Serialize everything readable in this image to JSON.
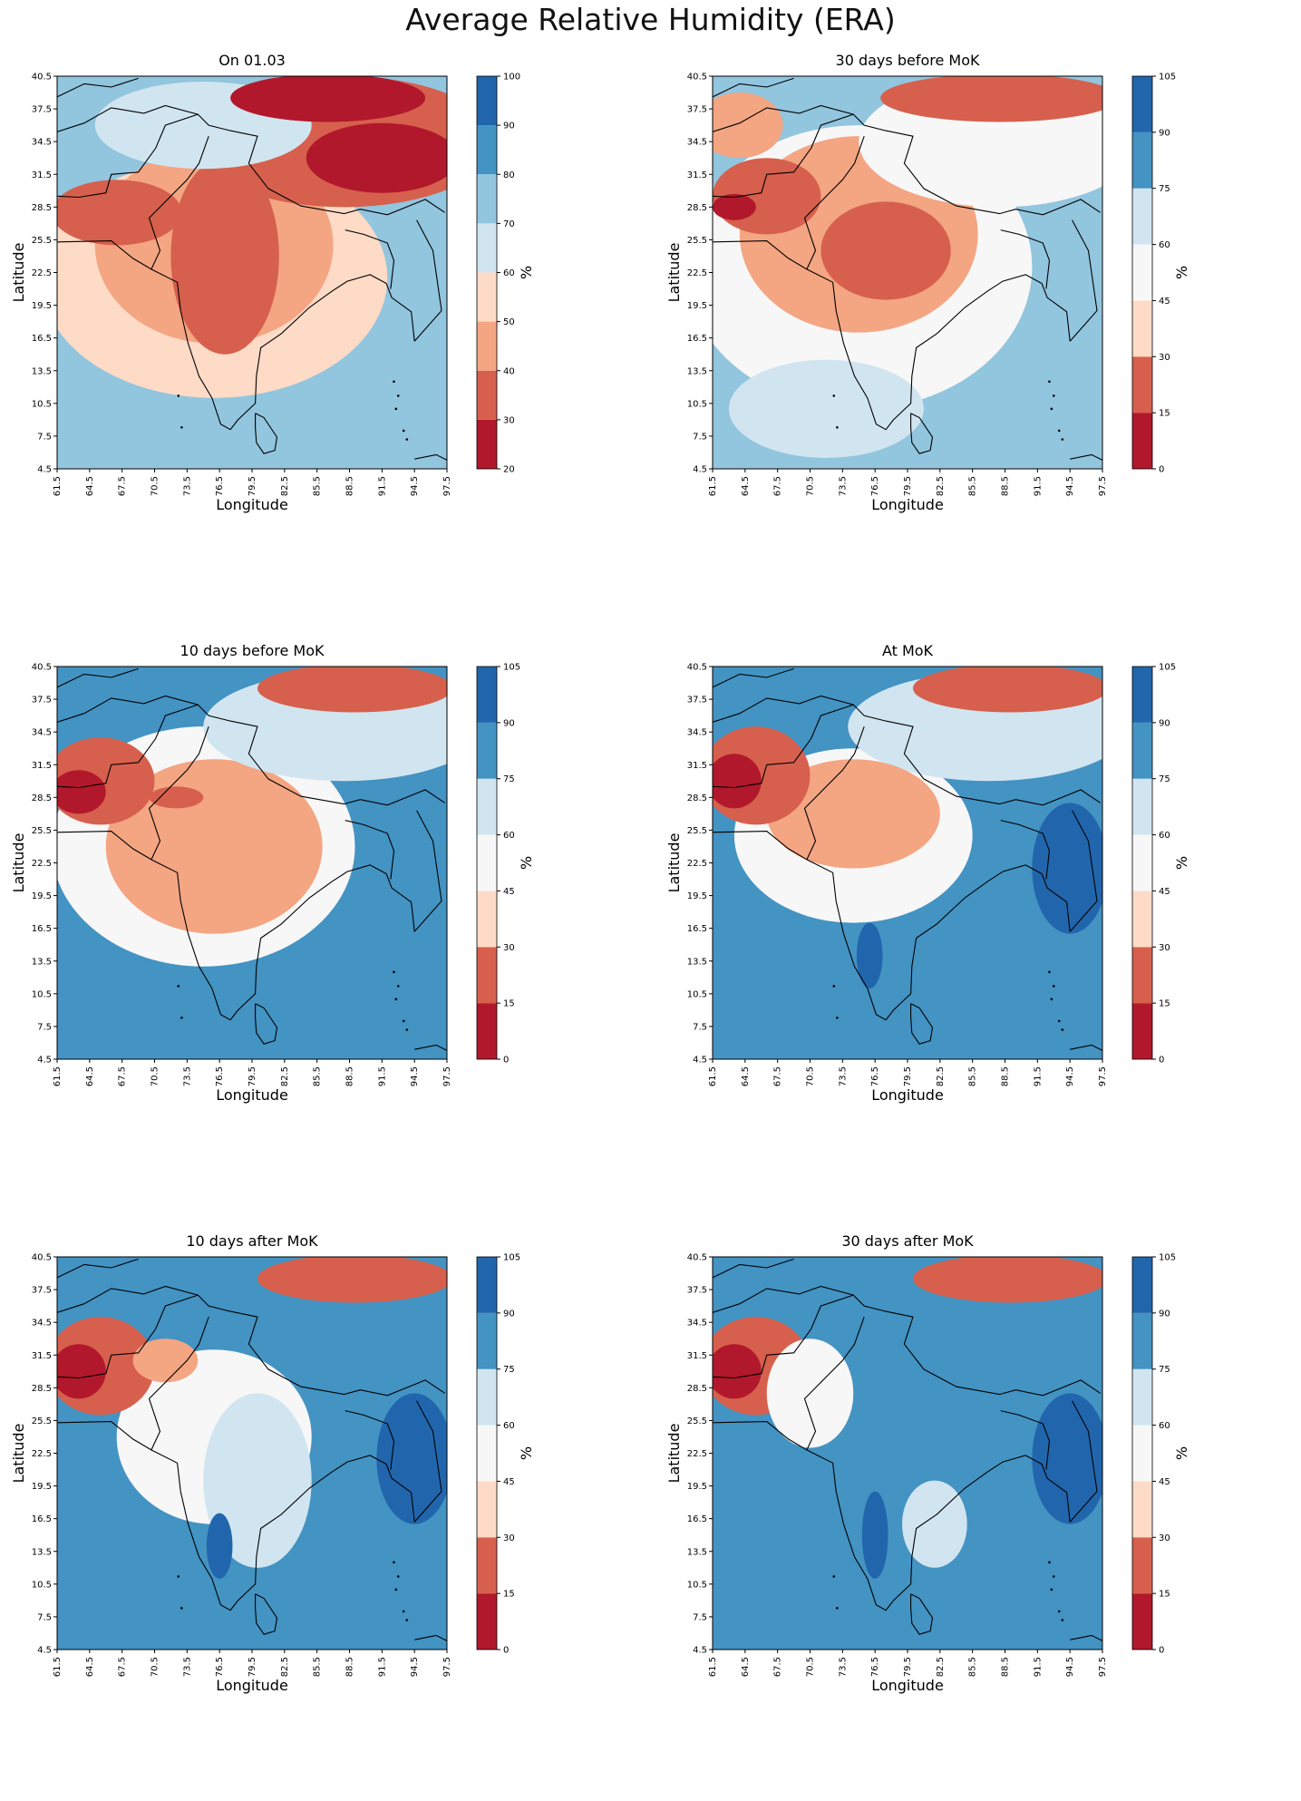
{
  "figure": {
    "title": "Average Relative Humidity (ERA)"
  },
  "colors": {
    "scale": [
      "#b2182b",
      "#d6604d",
      "#f4a582",
      "#fddbc7",
      "#f7f7f7",
      "#d1e5f0",
      "#92c5de",
      "#4393c3",
      "#2166ac"
    ],
    "coast": "#000000"
  },
  "chart_data": [
    {
      "type": "heatmap",
      "title": "On 01.03",
      "xlabel": "Longitude",
      "ylabel": "Latitude",
      "xticks": [
        "61.5",
        "64.5",
        "67.5",
        "70.5",
        "73.5",
        "76.5",
        "79.5",
        "82.5",
        "85.5",
        "88.5",
        "91.5",
        "94.5",
        "97.5"
      ],
      "yticks": [
        "4.5",
        "7.5",
        "10.5",
        "13.5",
        "16.5",
        "19.5",
        "22.5",
        "25.5",
        "28.5",
        "31.5",
        "34.5",
        "37.5",
        "40.5"
      ],
      "xlim": [
        61.5,
        97.5
      ],
      "ylim": [
        4.5,
        40.5
      ],
      "colorbar": {
        "label": "%",
        "ticks": [
          "20",
          "30",
          "40",
          "50",
          "60",
          "70",
          "80",
          "90",
          "100"
        ]
      },
      "field": {
        "background": 6,
        "blobs": [
          {
            "lon": 91.5,
            "lat": 33.0,
            "rx": 7,
            "ry": 3.2,
            "level": 0
          },
          {
            "lon": 86.5,
            "lat": 38.5,
            "rx": 9,
            "ry": 2.2,
            "level": 0
          },
          {
            "lon": 88.0,
            "lat": 34.5,
            "rx": 14,
            "ry": 6,
            "level": 1
          },
          {
            "lon": 77.0,
            "lat": 24.0,
            "rx": 5,
            "ry": 9,
            "level": 1
          },
          {
            "lon": 67.0,
            "lat": 28.0,
            "rx": 6,
            "ry": 3,
            "level": 1
          },
          {
            "lon": 76.0,
            "lat": 25.0,
            "rx": 11,
            "ry": 9,
            "level": 2
          },
          {
            "lon": 76.0,
            "lat": 22.0,
            "rx": 16,
            "ry": 11,
            "level": 3
          },
          {
            "lon": 75.0,
            "lat": 36.0,
            "rx": 10,
            "ry": 4,
            "level": 5
          }
        ]
      }
    },
    {
      "type": "heatmap",
      "title": "30 days before MoK",
      "xlabel": "Longitude",
      "ylabel": "Latitude",
      "xticks": [
        "61.5",
        "64.5",
        "67.5",
        "70.5",
        "73.5",
        "76.5",
        "79.5",
        "82.5",
        "85.5",
        "88.5",
        "91.5",
        "94.5",
        "97.5"
      ],
      "yticks": [
        "4.5",
        "7.5",
        "10.5",
        "13.5",
        "16.5",
        "19.5",
        "22.5",
        "25.5",
        "28.5",
        "31.5",
        "34.5",
        "37.5",
        "40.5"
      ],
      "xlim": [
        61.5,
        97.5
      ],
      "ylim": [
        4.5,
        40.5
      ],
      "colorbar": {
        "label": "%",
        "ticks": [
          "0",
          "15",
          "30",
          "45",
          "60",
          "75",
          "90",
          "105"
        ]
      },
      "field": {
        "background": 6,
        "blobs": [
          {
            "lon": 63.5,
            "lat": 28.5,
            "rx": 2,
            "ry": 1.2,
            "level": 0
          },
          {
            "lon": 66.5,
            "lat": 29.5,
            "rx": 5,
            "ry": 3.5,
            "level": 1
          },
          {
            "lon": 88.0,
            "lat": 38.5,
            "rx": 11,
            "ry": 2.2,
            "level": 1
          },
          {
            "lon": 77.5,
            "lat": 24.5,
            "rx": 6,
            "ry": 4.5,
            "level": 1
          },
          {
            "lon": 75.0,
            "lat": 26.0,
            "rx": 11,
            "ry": 9,
            "level": 2
          },
          {
            "lon": 64.0,
            "lat": 36.0,
            "rx": 4,
            "ry": 3,
            "level": 2
          },
          {
            "lon": 75.0,
            "lat": 23.0,
            "rx": 16,
            "ry": 13,
            "level": 4
          },
          {
            "lon": 88.0,
            "lat": 34.5,
            "rx": 13,
            "ry": 6,
            "level": 4
          },
          {
            "lon": 72.0,
            "lat": 10.0,
            "rx": 9,
            "ry": 4.5,
            "level": 5
          }
        ]
      }
    },
    {
      "type": "heatmap",
      "title": "10 days before MoK",
      "xlabel": "Longitude",
      "ylabel": "Latitude",
      "xticks": [
        "61.5",
        "64.5",
        "67.5",
        "70.5",
        "73.5",
        "76.5",
        "79.5",
        "82.5",
        "85.5",
        "88.5",
        "91.5",
        "94.5",
        "97.5"
      ],
      "yticks": [
        "4.5",
        "7.5",
        "10.5",
        "13.5",
        "16.5",
        "19.5",
        "22.5",
        "25.5",
        "28.5",
        "31.5",
        "34.5",
        "37.5",
        "40.5"
      ],
      "xlim": [
        61.5,
        97.5
      ],
      "ylim": [
        4.5,
        40.5
      ],
      "colorbar": {
        "label": "%",
        "ticks": [
          "0",
          "15",
          "30",
          "45",
          "60",
          "75",
          "90",
          "105"
        ]
      },
      "field": {
        "background": 7,
        "blobs": [
          {
            "lon": 63.5,
            "lat": 29.0,
            "rx": 2.5,
            "ry": 2,
            "level": 0
          },
          {
            "lon": 65.5,
            "lat": 30.0,
            "rx": 5,
            "ry": 4,
            "level": 1
          },
          {
            "lon": 89.0,
            "lat": 38.5,
            "rx": 9,
            "ry": 2.2,
            "level": 1
          },
          {
            "lon": 72.5,
            "lat": 28.5,
            "rx": 2.5,
            "ry": 1,
            "level": 1
          },
          {
            "lon": 76.0,
            "lat": 24.0,
            "rx": 10,
            "ry": 8,
            "level": 2
          },
          {
            "lon": 75.0,
            "lat": 24.0,
            "rx": 14,
            "ry": 11,
            "level": 4
          },
          {
            "lon": 88.0,
            "lat": 35.0,
            "rx": 13,
            "ry": 5,
            "level": 5
          }
        ]
      }
    },
    {
      "type": "heatmap",
      "title": "At MoK",
      "xlabel": "Longitude",
      "ylabel": "Latitude",
      "xticks": [
        "61.5",
        "64.5",
        "67.5",
        "70.5",
        "73.5",
        "76.5",
        "79.5",
        "82.5",
        "85.5",
        "88.5",
        "91.5",
        "94.5",
        "97.5"
      ],
      "yticks": [
        "4.5",
        "7.5",
        "10.5",
        "13.5",
        "16.5",
        "19.5",
        "22.5",
        "25.5",
        "28.5",
        "31.5",
        "34.5",
        "37.5",
        "40.5"
      ],
      "xlim": [
        61.5,
        97.5
      ],
      "ylim": [
        4.5,
        40.5
      ],
      "colorbar": {
        "label": "%",
        "ticks": [
          "0",
          "15",
          "30",
          "45",
          "60",
          "75",
          "90",
          "105"
        ]
      },
      "field": {
        "background": 7,
        "blobs": [
          {
            "lon": 94.5,
            "lat": 22.0,
            "rx": 3.5,
            "ry": 6,
            "level": 8
          },
          {
            "lon": 76.0,
            "lat": 14.0,
            "rx": 1.2,
            "ry": 3,
            "level": 8
          },
          {
            "lon": 63.5,
            "lat": 30.0,
            "rx": 2.5,
            "ry": 2.5,
            "level": 0
          },
          {
            "lon": 65.5,
            "lat": 30.5,
            "rx": 5,
            "ry": 4.5,
            "level": 1
          },
          {
            "lon": 89.0,
            "lat": 38.5,
            "rx": 9,
            "ry": 2.2,
            "level": 1
          },
          {
            "lon": 74.5,
            "lat": 27.0,
            "rx": 8,
            "ry": 5,
            "level": 2
          },
          {
            "lon": 74.5,
            "lat": 25.0,
            "rx": 11,
            "ry": 8,
            "level": 4
          },
          {
            "lon": 87.0,
            "lat": 35.0,
            "rx": 13,
            "ry": 5,
            "level": 5
          }
        ]
      }
    },
    {
      "type": "heatmap",
      "title": "10 days after MoK",
      "xlabel": "Longitude",
      "ylabel": "Latitude",
      "xticks": [
        "61.5",
        "64.5",
        "67.5",
        "70.5",
        "73.5",
        "76.5",
        "79.5",
        "82.5",
        "85.5",
        "88.5",
        "91.5",
        "94.5",
        "97.5"
      ],
      "yticks": [
        "4.5",
        "7.5",
        "10.5",
        "13.5",
        "16.5",
        "19.5",
        "22.5",
        "25.5",
        "28.5",
        "31.5",
        "34.5",
        "37.5",
        "40.5"
      ],
      "xlim": [
        61.5,
        97.5
      ],
      "ylim": [
        4.5,
        40.5
      ],
      "colorbar": {
        "label": "%",
        "ticks": [
          "0",
          "15",
          "30",
          "45",
          "60",
          "75",
          "90",
          "105"
        ]
      },
      "field": {
        "background": 7,
        "blobs": [
          {
            "lon": 94.5,
            "lat": 22.0,
            "rx": 3.5,
            "ry": 6,
            "level": 8
          },
          {
            "lon": 76.5,
            "lat": 14.0,
            "rx": 1.2,
            "ry": 3,
            "level": 8
          },
          {
            "lon": 63.5,
            "lat": 30.0,
            "rx": 2.5,
            "ry": 2.5,
            "level": 0
          },
          {
            "lon": 65.5,
            "lat": 30.5,
            "rx": 5,
            "ry": 4.5,
            "level": 1
          },
          {
            "lon": 89.0,
            "lat": 38.5,
            "rx": 9,
            "ry": 2.2,
            "level": 1
          },
          {
            "lon": 71.5,
            "lat": 31.0,
            "rx": 3,
            "ry": 2,
            "level": 2
          },
          {
            "lon": 76.0,
            "lat": 24.0,
            "rx": 9,
            "ry": 8,
            "level": 4
          },
          {
            "lon": 80.0,
            "lat": 20.0,
            "rx": 5,
            "ry": 8,
            "level": 5
          }
        ]
      }
    },
    {
      "type": "heatmap",
      "title": "30 days after MoK",
      "xlabel": "Longitude",
      "ylabel": "Latitude",
      "xticks": [
        "61.5",
        "64.5",
        "67.5",
        "70.5",
        "73.5",
        "76.5",
        "79.5",
        "82.5",
        "85.5",
        "88.5",
        "91.5",
        "94.5",
        "97.5"
      ],
      "yticks": [
        "4.5",
        "7.5",
        "10.5",
        "13.5",
        "16.5",
        "19.5",
        "22.5",
        "25.5",
        "28.5",
        "31.5",
        "34.5",
        "37.5",
        "40.5"
      ],
      "xlim": [
        61.5,
        97.5
      ],
      "ylim": [
        4.5,
        40.5
      ],
      "colorbar": {
        "label": "%",
        "ticks": [
          "0",
          "15",
          "30",
          "45",
          "60",
          "75",
          "90",
          "105"
        ]
      },
      "field": {
        "background": 7,
        "blobs": [
          {
            "lon": 94.5,
            "lat": 22.0,
            "rx": 3.5,
            "ry": 6,
            "level": 8
          },
          {
            "lon": 76.5,
            "lat": 15.0,
            "rx": 1.2,
            "ry": 4,
            "level": 8
          },
          {
            "lon": 63.5,
            "lat": 30.0,
            "rx": 2.5,
            "ry": 2.5,
            "level": 0
          },
          {
            "lon": 65.5,
            "lat": 30.5,
            "rx": 5,
            "ry": 4.5,
            "level": 1
          },
          {
            "lon": 89.0,
            "lat": 38.5,
            "rx": 9,
            "ry": 2.2,
            "level": 1
          },
          {
            "lon": 70.5,
            "lat": 28.0,
            "rx": 4,
            "ry": 5,
            "level": 4
          },
          {
            "lon": 82.0,
            "lat": 16.0,
            "rx": 3,
            "ry": 4,
            "level": 5
          }
        ]
      }
    }
  ]
}
